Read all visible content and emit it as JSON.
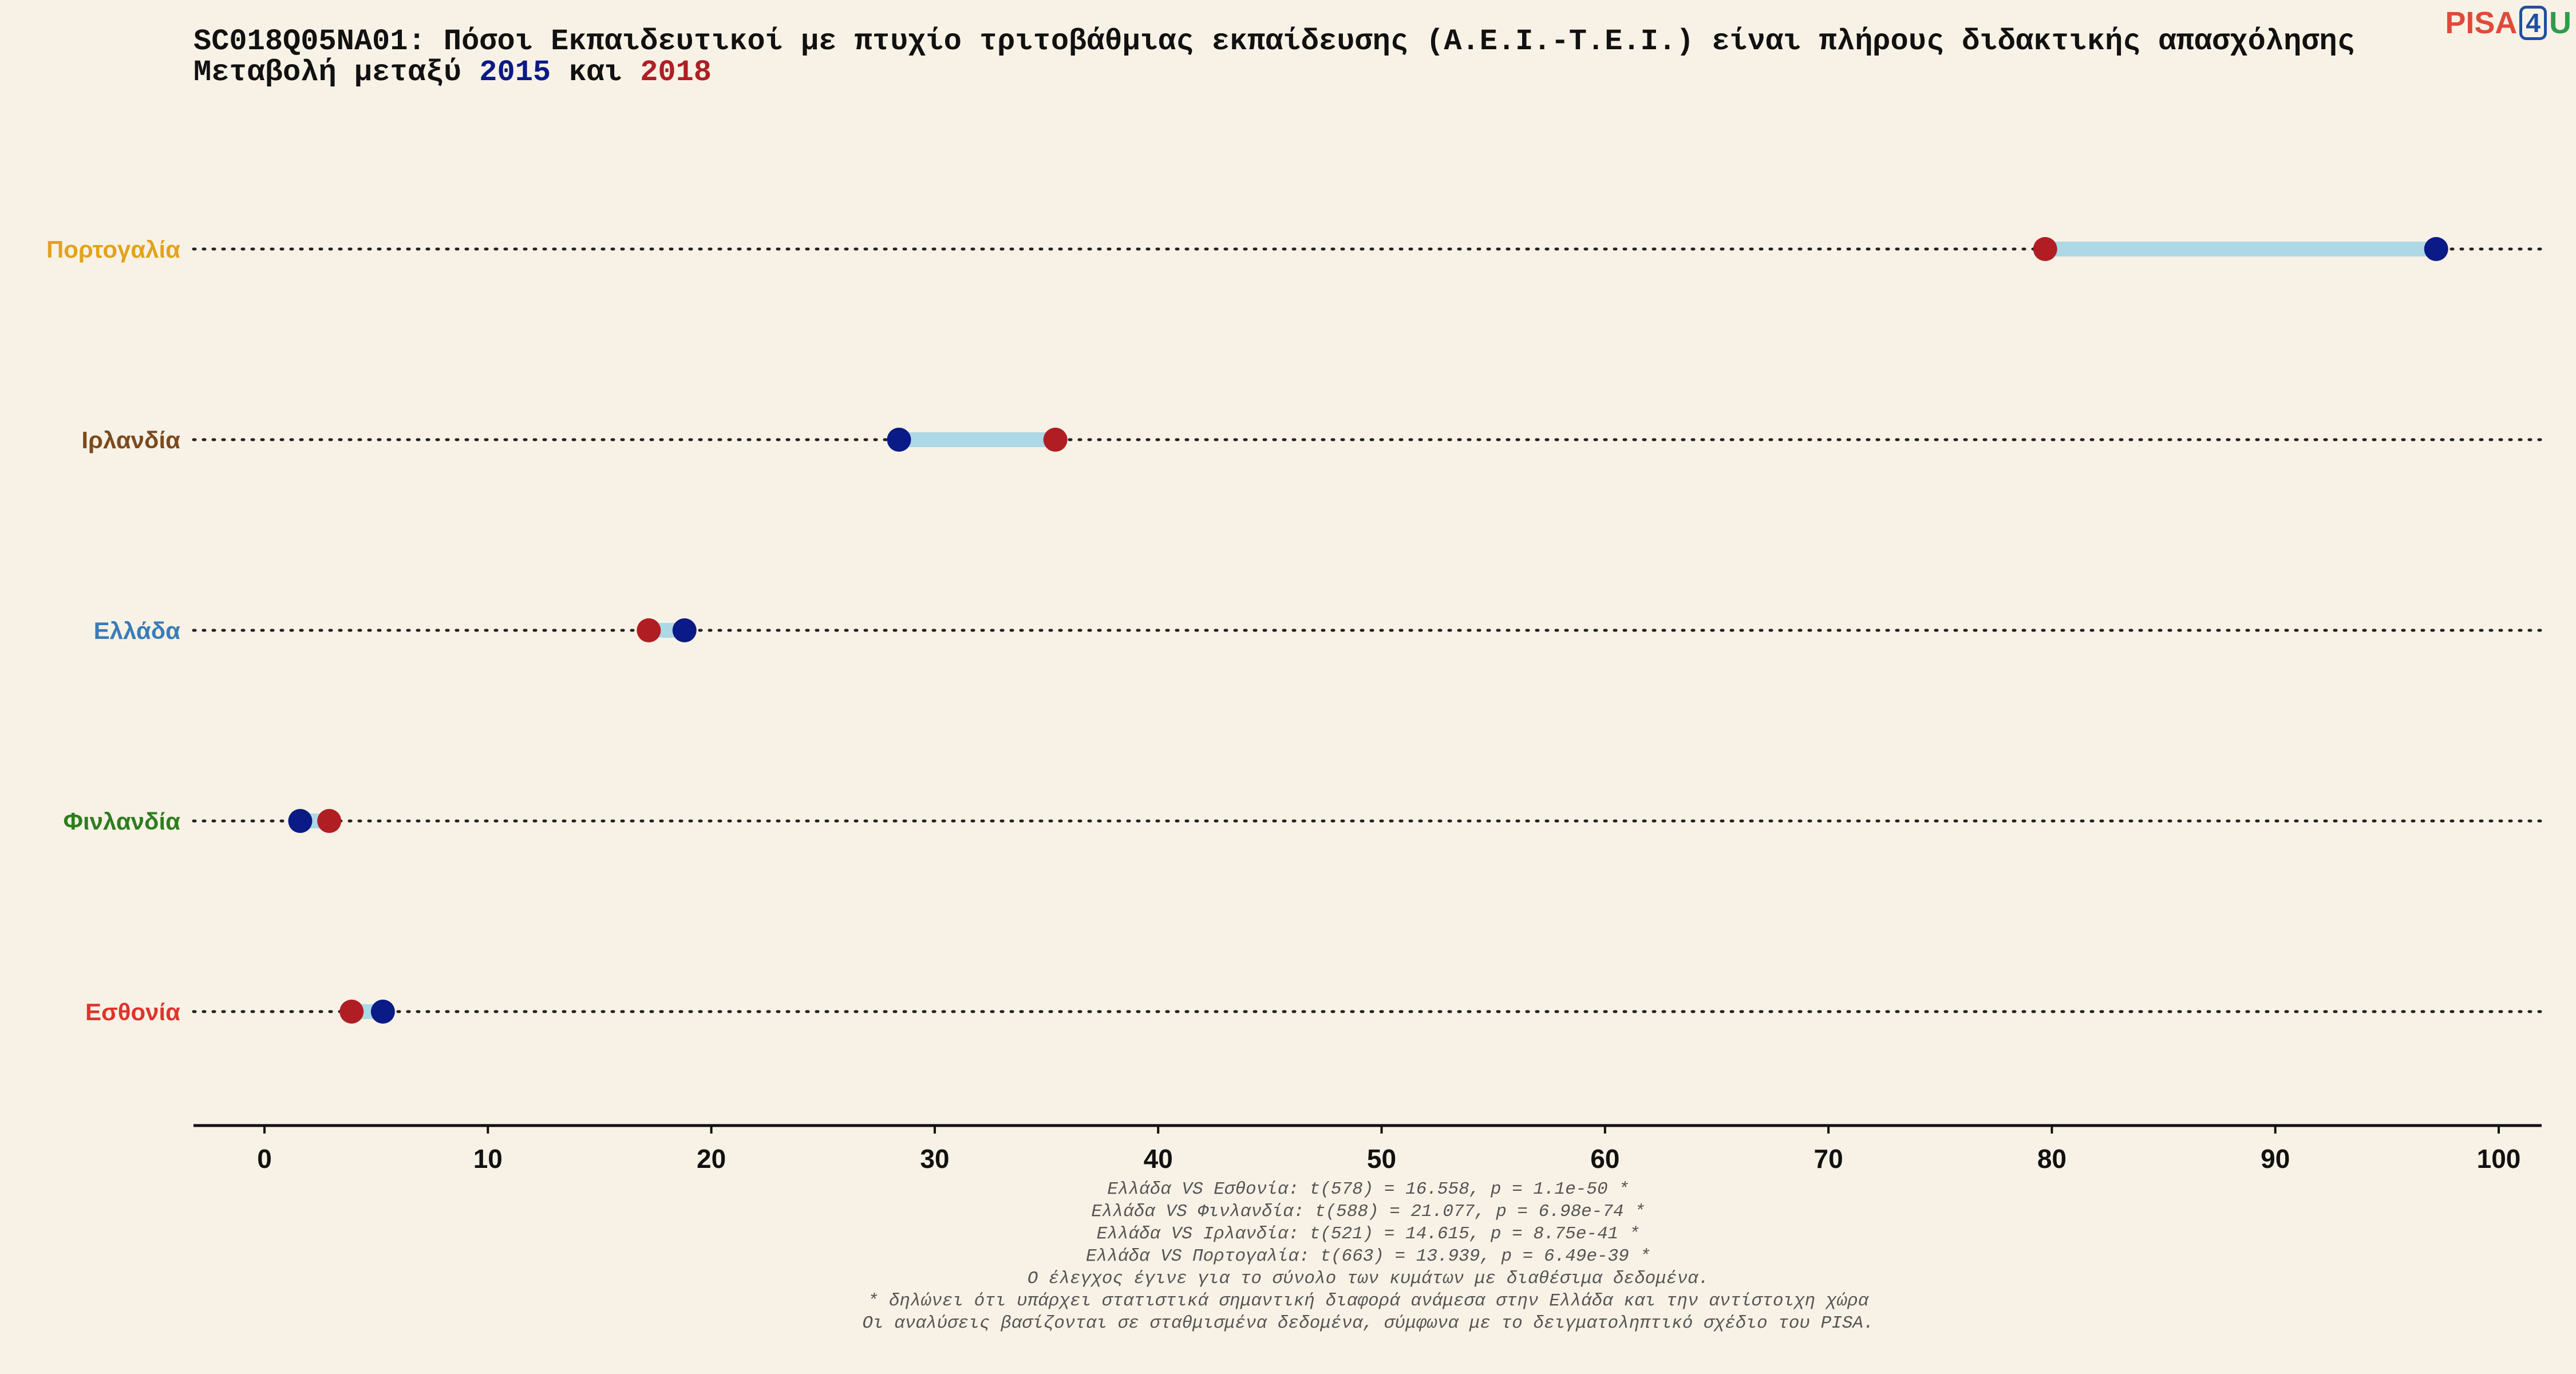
{
  "title": {
    "line1": "SC018Q05NA01: Πόσοι Εκπαιδευτικοί με πτυχίο τριτοβάθμιας εκπαίδευσης (Α.Ε.Ι.-Τ.Ε.Ι.) είναι πλήρους διδακτικής απασχόλησης",
    "line2_prefix": "Μεταβολή μεταξύ",
    "year_a": "2015",
    "conj": "και",
    "year_b": "2018"
  },
  "logo": {
    "pisa": "PISA",
    "four": "4",
    "u": "U"
  },
  "colors": {
    "background": "#f8f2e6",
    "y2015": "#0a1a86",
    "y2018": "#b01e23",
    "connector": "#add8e6"
  },
  "chart_data": {
    "type": "dumbbell",
    "xlim": [
      -3,
      102
    ],
    "xticks": [
      "0",
      "10",
      "20",
      "30",
      "40",
      "50",
      "60",
      "70",
      "80",
      "90",
      "100"
    ],
    "rows": [
      {
        "country": "Πορτογαλία",
        "color": "#e3a21a",
        "v2015": 97.2,
        "v2018": 79.7
      },
      {
        "country": "Ιρλανδία",
        "color": "#7a4a1f",
        "v2015": 28.4,
        "v2018": 35.4
      },
      {
        "country": "Ελλάδα",
        "color": "#3a7cb8",
        "v2015": 18.8,
        "v2018": 17.2
      },
      {
        "country": "Φινλανδία",
        "color": "#2e7d1f",
        "v2015": 1.6,
        "v2018": 2.9
      },
      {
        "country": "Εσθονία",
        "color": "#e0332c",
        "v2015": 5.3,
        "v2018": 3.9
      }
    ],
    "grid": false
  },
  "footnotes": [
    "Ελλάδα VS Εσθονία: t(578) = 16.558, p = 1.1e-50 *",
    "Ελλάδα VS Φινλανδία: t(588) = 21.077, p = 6.98e-74 *",
    "Ελλάδα VS Ιρλανδία: t(521) = 14.615, p = 8.75e-41 *",
    "Ελλάδα VS Πορτογαλία: t(663) = 13.939, p = 6.49e-39 *",
    "Ο έλεγχος έγινε για το σύνολο των κυμάτων με διαθέσιμα δεδομένα.",
    "* δηλώνει ότι υπάρχει στατιστικά σημαντική διαφορά ανάμεσα στην Ελλάδα και την αντίστοιχη χώρα",
    "Οι αναλύσεις βασίζονται σε σταθμισμένα δεδομένα, σύμφωνα με το δειγματοληπτικό σχέδιο του PISA."
  ]
}
